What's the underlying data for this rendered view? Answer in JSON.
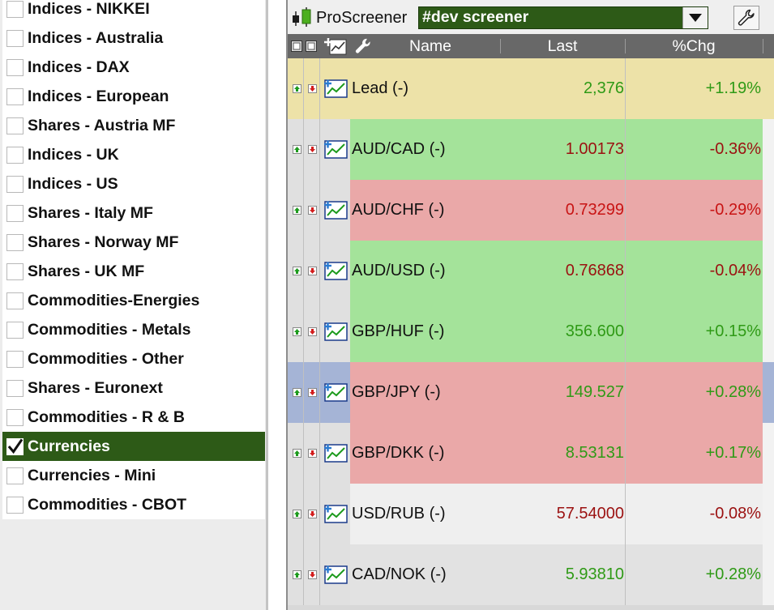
{
  "markets": [
    {
      "label": "Indices - NIKKEI",
      "checked": false
    },
    {
      "label": "Indices - Australia",
      "checked": false
    },
    {
      "label": "Indices - DAX",
      "checked": false
    },
    {
      "label": "Indices - European",
      "checked": false
    },
    {
      "label": "Shares - Austria MF",
      "checked": false
    },
    {
      "label": "Indices - UK",
      "checked": false
    },
    {
      "label": "Indices - US",
      "checked": false
    },
    {
      "label": "Shares - Italy MF",
      "checked": false
    },
    {
      "label": "Shares - Norway MF",
      "checked": false
    },
    {
      "label": "Shares - UK MF",
      "checked": false
    },
    {
      "label": "Commodities-Energies",
      "checked": false
    },
    {
      "label": "Commodities - Metals",
      "checked": false
    },
    {
      "label": "Commodities - Other",
      "checked": false
    },
    {
      "label": "Shares - Euronext",
      "checked": false
    },
    {
      "label": "Commodities - R & B",
      "checked": false
    },
    {
      "label": "Currencies",
      "checked": true
    },
    {
      "label": "Currencies - Mini",
      "checked": false
    },
    {
      "label": "Commodities - CBOT",
      "checked": false
    }
  ],
  "screener": {
    "app_title": "ProScreener",
    "selected_screener": "#dev screener",
    "columns": {
      "name": "Name",
      "last": "Last",
      "chg": "%Chg"
    },
    "rows": [
      {
        "name": "Lead (-)",
        "last": "2,376",
        "chg": "+1.19%",
        "bg": "#ede2a8",
        "ctrl_bg": "#ede2a8",
        "last_color": "#2f9a16",
        "chg_color": "#2f9a16"
      },
      {
        "name": "AUD/CAD (-)",
        "last": "1.00173",
        "chg": "-0.36%",
        "bg": "#a4e39a",
        "ctrl_bg": "#e0e0e0",
        "last_color": "#9b1111",
        "chg_color": "#9b1111"
      },
      {
        "name": "AUD/CHF (-)",
        "last": "0.73299",
        "chg": "-0.29%",
        "bg": "#eaa8a8",
        "ctrl_bg": "#e0e0e0",
        "last_color": "#c81414",
        "chg_color": "#c81414"
      },
      {
        "name": "AUD/USD (-)",
        "last": "0.76868",
        "chg": "-0.04%",
        "bg": "#a4e39a",
        "ctrl_bg": "#e0e0e0",
        "last_color": "#9b1111",
        "chg_color": "#9b1111"
      },
      {
        "name": "GBP/HUF (-)",
        "last": "356.600",
        "chg": "+0.15%",
        "bg": "#a4e39a",
        "ctrl_bg": "#e0e0e0",
        "last_color": "#2f9a16",
        "chg_color": "#2f9a16"
      },
      {
        "name": "GBP/JPY (-)",
        "last": "149.527",
        "chg": "+0.28%",
        "bg": "#eaa8a8",
        "ctrl_bg": "#a5b4d6",
        "last_color": "#2f9a16",
        "chg_color": "#2f9a16"
      },
      {
        "name": "GBP/DKK (-)",
        "last": "8.53131",
        "chg": "+0.17%",
        "bg": "#eaa8a8",
        "ctrl_bg": "#e0e0e0",
        "last_color": "#2f9a16",
        "chg_color": "#2f9a16"
      },
      {
        "name": "USD/RUB (-)",
        "last": "57.54000",
        "chg": "-0.08%",
        "bg": "#efefef",
        "ctrl_bg": "#e0e0e0",
        "last_color": "#9b1111",
        "chg_color": "#9b1111"
      },
      {
        "name": "CAD/NOK (-)",
        "last": "5.93810",
        "chg": "+0.28%",
        "bg": "#e2e2e2",
        "ctrl_bg": "#e0e0e0",
        "last_color": "#2f9a16",
        "chg_color": "#2f9a16"
      }
    ]
  },
  "icons": {
    "logo": "candlestick-logo-icon",
    "dropdown": "triangle-down-icon",
    "settings": "wrench-icon",
    "header_expand": "expand-all-icon",
    "header_collapse": "collapse-all-icon",
    "header_add_chart": "add-chart-icon",
    "header_tools": "wrench-icon",
    "row_up": "sort-up-arrow-icon",
    "row_down": "sort-down-arrow-icon",
    "row_chart": "chart-icon"
  },
  "colors": {
    "selection_green": "#2d5a17",
    "header_gray": "#686868",
    "positive": "#2f9a16",
    "negative": "#9b1111"
  }
}
